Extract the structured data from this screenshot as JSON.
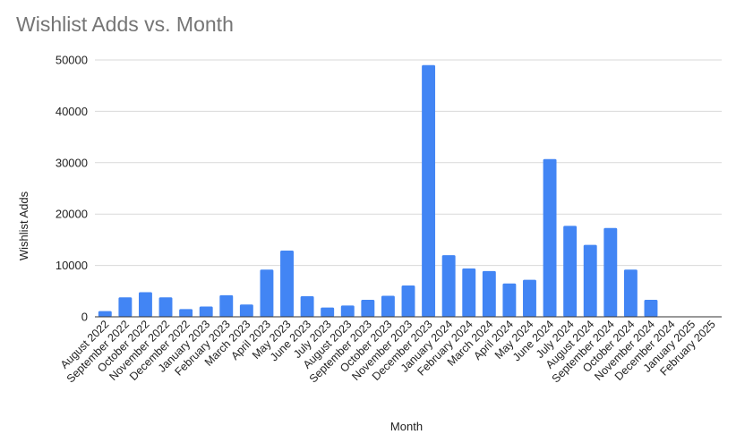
{
  "chart_data": {
    "type": "bar",
    "title": "Wishlist Adds vs. Month",
    "xlabel": "Month",
    "ylabel": "Wishlist Adds",
    "ylim": [
      0,
      50000
    ],
    "yticks": [
      0,
      10000,
      20000,
      30000,
      40000,
      50000
    ],
    "grid": true,
    "bar_color": "#4285f4",
    "categories": [
      "August 2022",
      "September 2022",
      "October 2022",
      "November 2022",
      "December 2022",
      "January 2023",
      "February 2023",
      "March 2023",
      "April 2023",
      "May 2023",
      "June 2023",
      "July 2023",
      "August 2023",
      "September 2023",
      "October 2023",
      "November 2023",
      "December 2023",
      "January 2024",
      "February 2024",
      "March 2024",
      "April 2024",
      "May 2024",
      "June 2024",
      "July 2024",
      "August 2024",
      "September 2024",
      "October 2024",
      "November 2024",
      "December 2024",
      "January 2025",
      "February 2025"
    ],
    "values": [
      1100,
      3800,
      4800,
      3800,
      1500,
      2000,
      4200,
      2400,
      9200,
      12900,
      4000,
      1800,
      2200,
      3300,
      4100,
      6100,
      49000,
      12000,
      9400,
      8900,
      6500,
      7200,
      30700,
      17700,
      14000,
      17300,
      9200,
      3300,
      0,
      0,
      0
    ]
  }
}
